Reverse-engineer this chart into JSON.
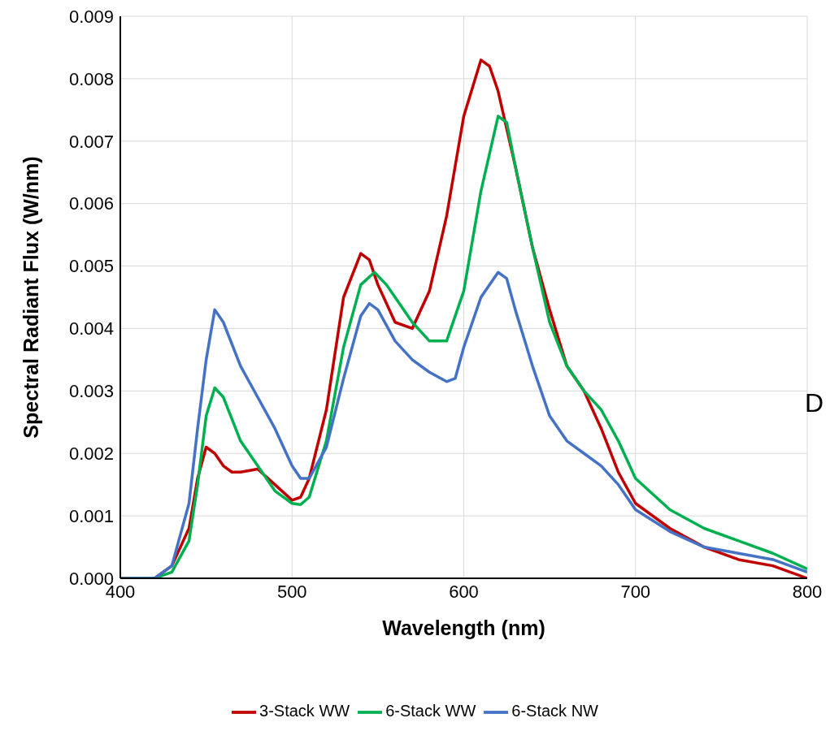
{
  "chart_data": {
    "type": "line",
    "xlabel": "Wavelength (nm)",
    "ylabel": "Spectral Radiant Flux (W/nm)",
    "xlim": [
      400,
      800
    ],
    "xticks": [
      400,
      500,
      600,
      700,
      800
    ],
    "ylim": [
      0,
      0.009
    ],
    "yticks": [
      {
        "value": 0,
        "label": "0.000"
      },
      {
        "value": 0.001,
        "label": "0.001"
      },
      {
        "value": 0.002,
        "label": "0.002"
      },
      {
        "value": 0.003,
        "label": "0.003"
      },
      {
        "value": 0.004,
        "label": "0.004"
      },
      {
        "value": 0.005,
        "label": "0.005"
      },
      {
        "value": 0.006,
        "label": "0.006"
      },
      {
        "value": 0.007,
        "label": "0.007"
      },
      {
        "value": 0.008,
        "label": "0.008"
      },
      {
        "value": 0.009,
        "label": "0.009"
      }
    ],
    "grid": true,
    "legend": "bottom",
    "marker": "none",
    "line_style": "solid",
    "annotations": [
      "D"
    ],
    "series": [
      {
        "name": "3-Stack WW",
        "color": "#c00000",
        "x": [
          400,
          420,
          430,
          440,
          445,
          450,
          455,
          460,
          465,
          470,
          480,
          490,
          500,
          505,
          510,
          520,
          530,
          540,
          545,
          550,
          560,
          570,
          580,
          590,
          600,
          610,
          615,
          620,
          630,
          640,
          650,
          660,
          670,
          680,
          690,
          700,
          720,
          740,
          760,
          780,
          800
        ],
        "values": [
          0,
          0,
          0.0002,
          0.0008,
          0.0016,
          0.0021,
          0.002,
          0.0018,
          0.0017,
          0.0017,
          0.00175,
          0.0015,
          0.00125,
          0.0013,
          0.0016,
          0.0027,
          0.0045,
          0.0052,
          0.0051,
          0.0047,
          0.0041,
          0.004,
          0.0046,
          0.0058,
          0.0074,
          0.0083,
          0.0082,
          0.0078,
          0.0066,
          0.0053,
          0.0043,
          0.0034,
          0.003,
          0.0024,
          0.0017,
          0.0012,
          0.0008,
          0.0005,
          0.0003,
          0.0002,
          0
        ]
      },
      {
        "name": "6-Stack WW",
        "color": "#00b050",
        "x": [
          400,
          420,
          430,
          440,
          445,
          450,
          455,
          460,
          470,
          480,
          490,
          500,
          505,
          510,
          520,
          530,
          540,
          548,
          555,
          560,
          570,
          580,
          590,
          600,
          610,
          620,
          625,
          630,
          640,
          650,
          660,
          670,
          680,
          690,
          700,
          720,
          740,
          760,
          780,
          800
        ],
        "values": [
          0,
          0,
          0.0001,
          0.0006,
          0.0015,
          0.0026,
          0.00305,
          0.0029,
          0.0022,
          0.0018,
          0.0014,
          0.0012,
          0.00118,
          0.0013,
          0.0022,
          0.0037,
          0.0047,
          0.0049,
          0.0047,
          0.0045,
          0.0041,
          0.0038,
          0.0038,
          0.0046,
          0.0062,
          0.0074,
          0.0073,
          0.0066,
          0.0053,
          0.0041,
          0.0034,
          0.003,
          0.0027,
          0.0022,
          0.0016,
          0.0011,
          0.0008,
          0.0006,
          0.0004,
          0.00015
        ]
      },
      {
        "name": "6-Stack NW",
        "color": "#4472c4",
        "x": [
          400,
          420,
          430,
          440,
          445,
          450,
          455,
          460,
          470,
          480,
          490,
          500,
          505,
          510,
          520,
          530,
          540,
          545,
          550,
          560,
          570,
          580,
          590,
          595,
          600,
          610,
          620,
          625,
          630,
          640,
          650,
          660,
          670,
          680,
          690,
          700,
          720,
          740,
          760,
          780,
          800
        ],
        "values": [
          0,
          0,
          0.0002,
          0.0012,
          0.0024,
          0.0035,
          0.0043,
          0.0041,
          0.0034,
          0.0029,
          0.0024,
          0.0018,
          0.0016,
          0.0016,
          0.0021,
          0.0032,
          0.0042,
          0.0044,
          0.0043,
          0.0038,
          0.0035,
          0.0033,
          0.00315,
          0.0032,
          0.0037,
          0.0045,
          0.0049,
          0.0048,
          0.0043,
          0.0034,
          0.0026,
          0.0022,
          0.002,
          0.0018,
          0.0015,
          0.0011,
          0.00075,
          0.0005,
          0.0004,
          0.0003,
          0.0001
        ]
      }
    ]
  }
}
